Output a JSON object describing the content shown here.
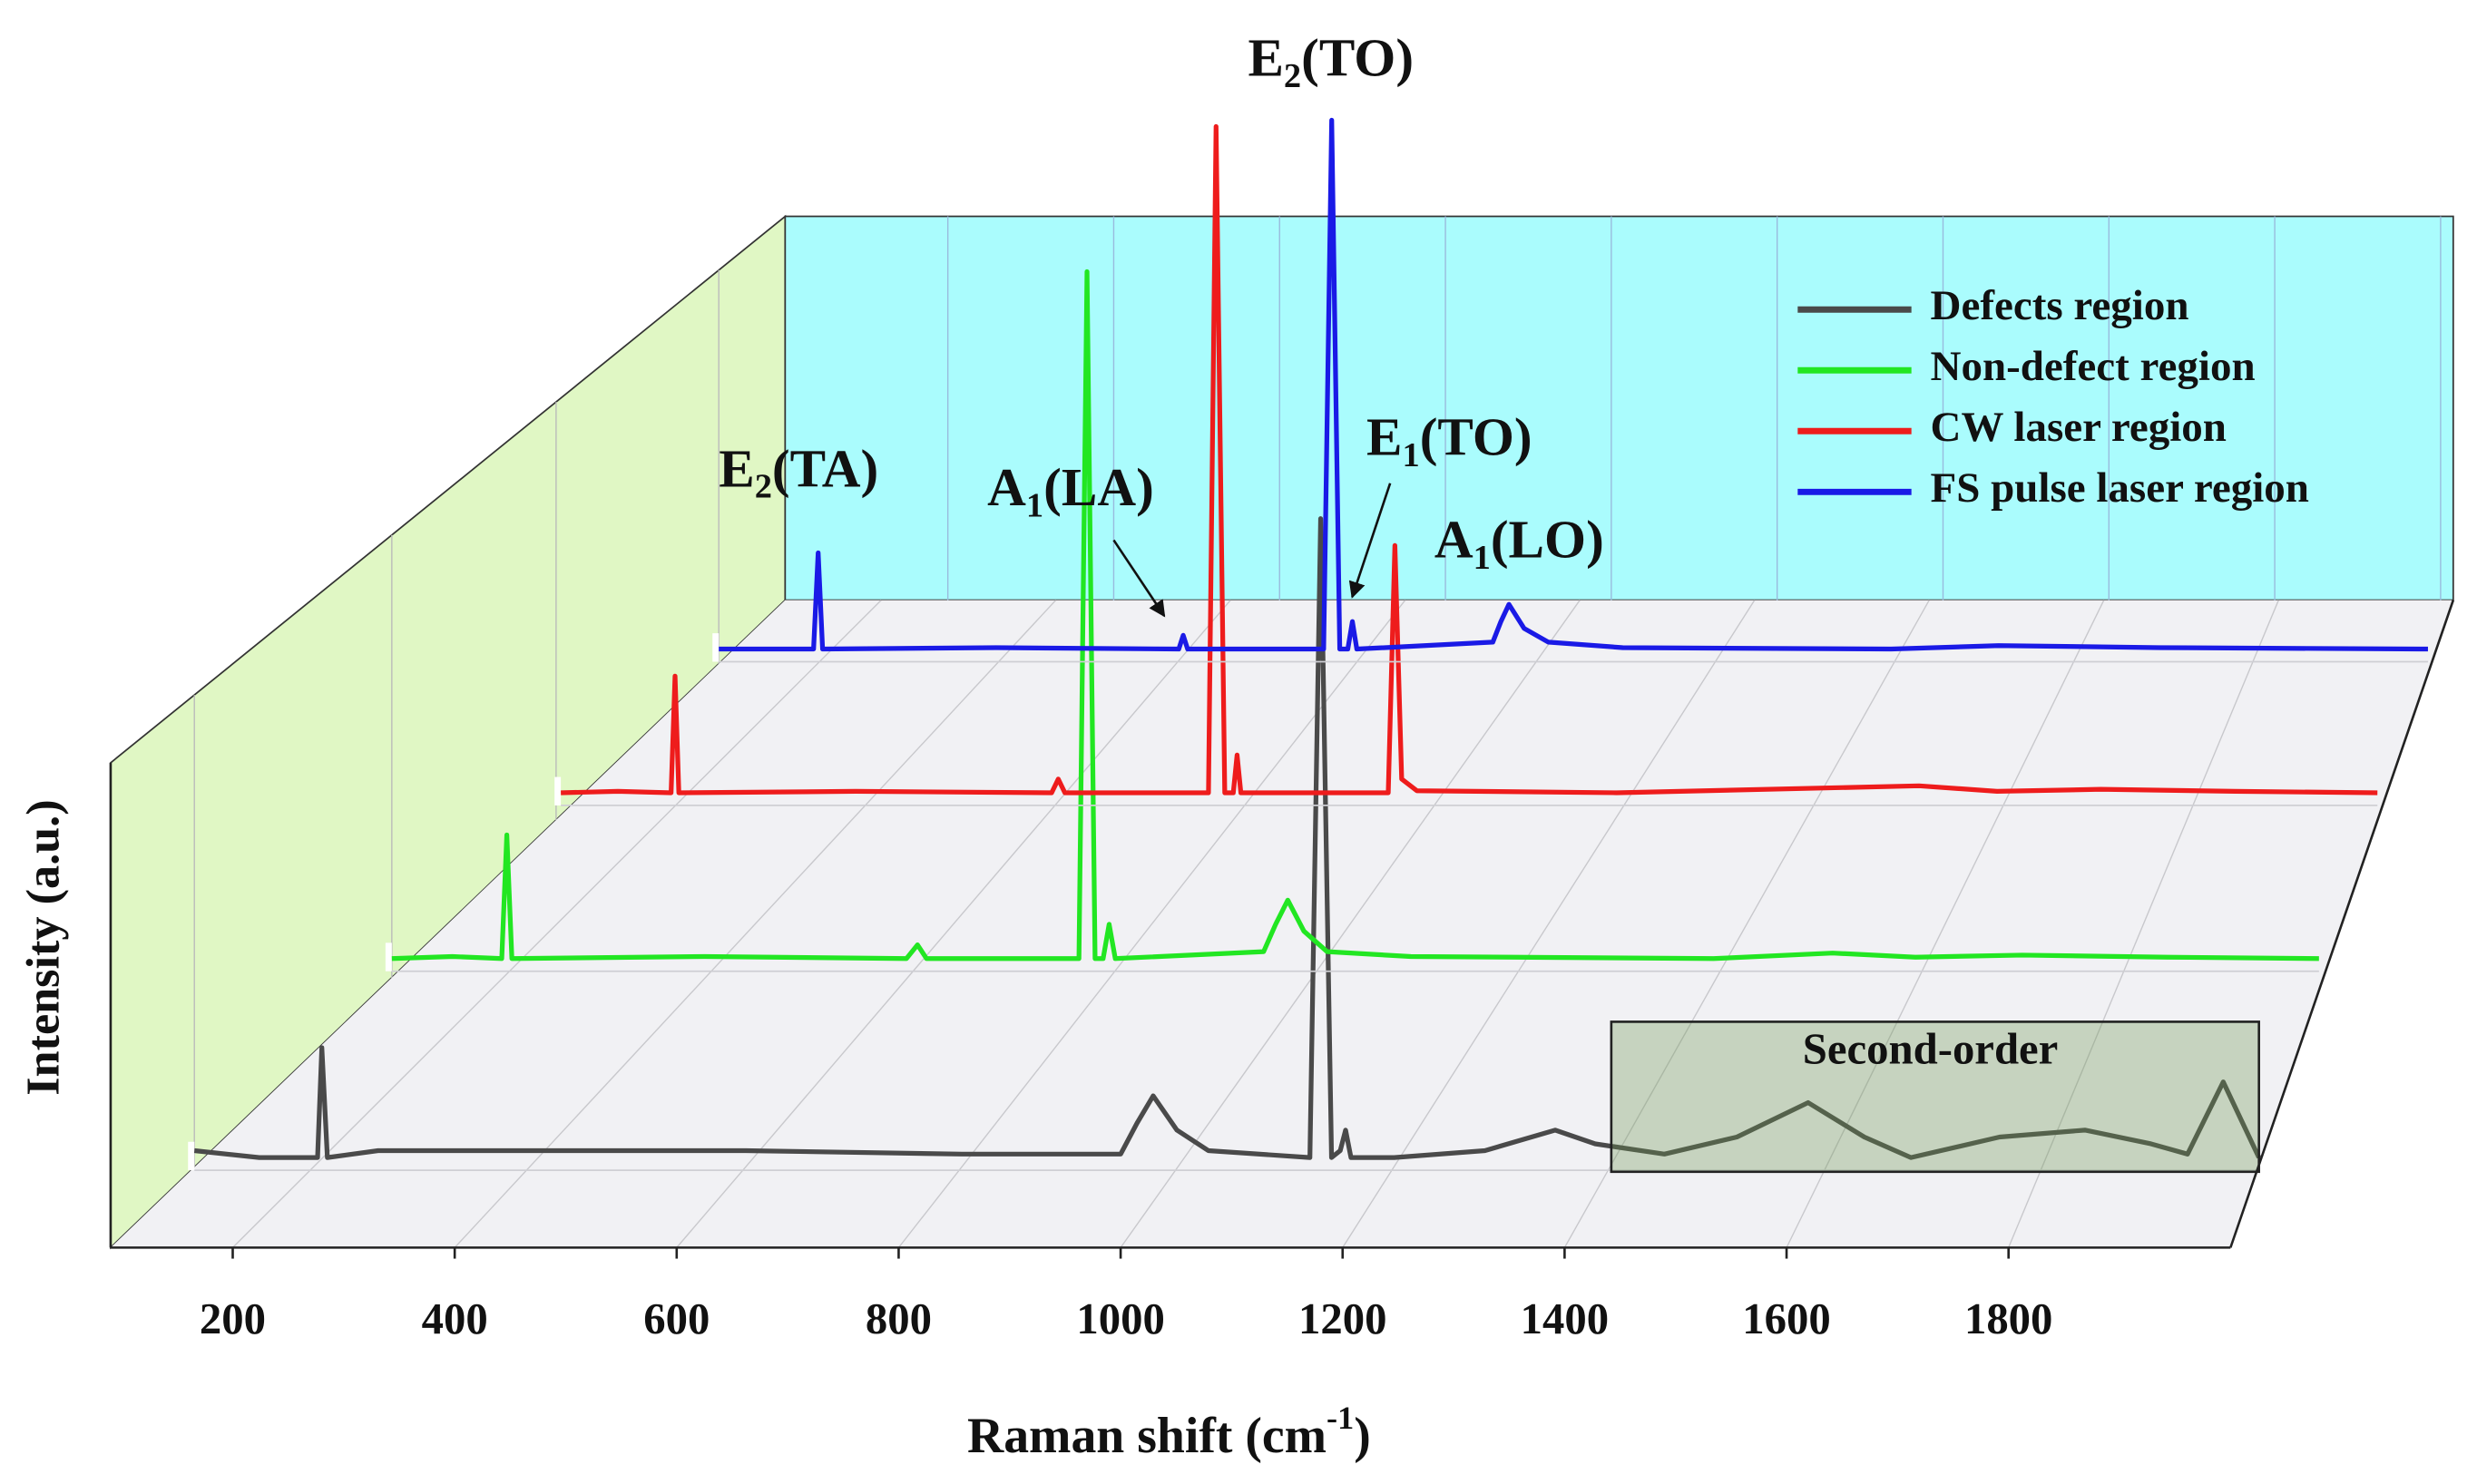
{
  "chart_data": {
    "type": "waterfall",
    "xlabel": {
      "base": "Raman shift (cm",
      "sup": "-1",
      "tail": ")"
    },
    "ylabel": "Intensity (a.u.)",
    "xlim": [
      90,
      2000
    ],
    "xticks": [
      200,
      400,
      600,
      800,
      1000,
      1200,
      1400,
      1600,
      1800
    ],
    "ylim": [
      0,
      100
    ],
    "legend": "upper right",
    "box_label": "Second-order",
    "annotations": [
      {
        "base": "E",
        "sub": "2",
        "tail": "(TO)"
      },
      {
        "base": "E",
        "sub": "2",
        "tail": "(TA)"
      },
      {
        "base": "A",
        "sub": "1",
        "tail": "(LA)"
      },
      {
        "base": "E",
        "sub": "1",
        "tail": "(TO)"
      },
      {
        "base": "A",
        "sub": "1",
        "tail": "(LO)"
      }
    ],
    "series": [
      {
        "name": "Defects region",
        "color": "#4a4a4a",
        "x": [
          90,
          150,
          204,
          208,
          213,
          260,
          400,
          600,
          800,
          947,
          962,
          977,
          999,
          1028,
          1122,
          1132,
          1142,
          1150,
          1155,
          1160,
          1200,
          1284,
          1349,
          1386,
          1450,
          1517,
          1583,
          1635,
          1678,
          1760,
          1839,
          1900,
          1934,
          1967,
          2000
        ],
        "values": [
          1,
          0,
          0,
          16,
          0,
          1,
          1,
          1,
          0.5,
          0.5,
          5,
          9,
          4,
          1,
          0,
          93,
          0,
          1,
          4,
          0,
          0,
          1,
          4,
          2,
          0.5,
          3,
          8,
          3,
          0,
          3,
          4,
          2,
          0.5,
          11,
          0
        ]
      },
      {
        "name": "Non-defect region",
        "color": "#22e622",
        "x": [
          90,
          150,
          199,
          204,
          209,
          400,
          600,
          611,
          620,
          771,
          779,
          787,
          795,
          801,
          807,
          954,
          966,
          978,
          994,
          1017,
          1100,
          1400,
          1518,
          1600,
          1706,
          1850,
          2000
        ],
        "values": [
          0,
          0.3,
          0,
          18,
          0,
          0.3,
          0,
          2,
          0,
          0,
          100,
          0,
          0,
          5,
          0,
          1,
          5,
          8.5,
          4,
          1,
          0.3,
          0,
          0.8,
          0.2,
          0.5,
          0.2,
          0
        ]
      },
      {
        "name": "CW laser region",
        "color": "#ee1c1c",
        "x": [
          90,
          150,
          206,
          210,
          214,
          400,
          606,
          613,
          620,
          771,
          779,
          788,
          797,
          801,
          805,
          960,
          967,
          974,
          990,
          1200,
          1518,
          1600,
          1709,
          1850,
          2000
        ],
        "values": [
          0,
          0.2,
          0,
          17,
          0,
          0.2,
          0,
          2,
          0,
          0,
          97,
          0,
          0,
          5.5,
          0,
          0,
          36,
          2,
          0.3,
          0,
          1,
          0.2,
          0.5,
          0.2,
          0
        ]
      },
      {
        "name": "FS pulse laser region",
        "color": "#1a1ae6",
        "x": [
          90,
          196,
          201,
          206,
          400,
          604,
          609,
          614,
          766,
          775,
          784,
          793,
          798,
          803,
          955,
          964,
          973,
          990,
          1017,
          1100,
          1400,
          1520,
          1700,
          2000
        ],
        "values": [
          0,
          0,
          14,
          0,
          0.2,
          0,
          2,
          0,
          0,
          77,
          0,
          0,
          4,
          0,
          1,
          4,
          6.5,
          3,
          1,
          0.2,
          0,
          0.5,
          0.2,
          0
        ]
      }
    ]
  }
}
